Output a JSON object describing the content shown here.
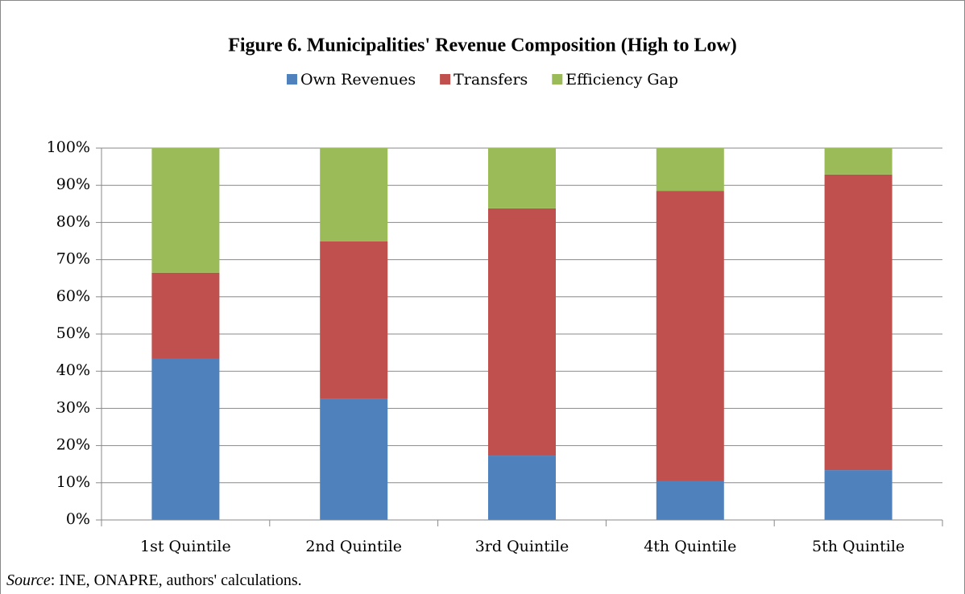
{
  "chart_data": {
    "type": "stacked_bar",
    "title": "Figure 6.  Municipalities' Revenue Composition (High to Low)",
    "categories": [
      "1st Quintile",
      "2nd Quintile",
      "3rd Quintile",
      "4th Quintile",
      "5th Quintile"
    ],
    "series": [
      {
        "name": "Own Revenues",
        "color": "#4f81bd",
        "values": [
          43.3,
          32.5,
          17.3,
          10.4,
          13.4
        ]
      },
      {
        "name": "Transfers",
        "color": "#c0504d",
        "values": [
          23.2,
          42.4,
          66.5,
          78.1,
          79.5
        ]
      },
      {
        "name": "Efficiency Gap",
        "color": "#9bbb59",
        "values": [
          33.5,
          25.1,
          16.2,
          11.5,
          7.1
        ]
      }
    ],
    "ylim": [
      0,
      100
    ],
    "yticks": [
      {
        "value": 0,
        "label": "0%"
      },
      {
        "value": 10,
        "label": "10%"
      },
      {
        "value": 20,
        "label": "20%"
      },
      {
        "value": 30,
        "label": "30%"
      },
      {
        "value": 40,
        "label": "40%"
      },
      {
        "value": 50,
        "label": "50%"
      },
      {
        "value": 60,
        "label": "60%"
      },
      {
        "value": 70,
        "label": "70%"
      },
      {
        "value": 80,
        "label": "80%"
      },
      {
        "value": 90,
        "label": "90%"
      },
      {
        "value": 100,
        "label": "100%"
      }
    ],
    "grid": true,
    "legend": "top",
    "source_label": "Source",
    "source_text": ": INE, ONAPRE, authors' calculations."
  }
}
